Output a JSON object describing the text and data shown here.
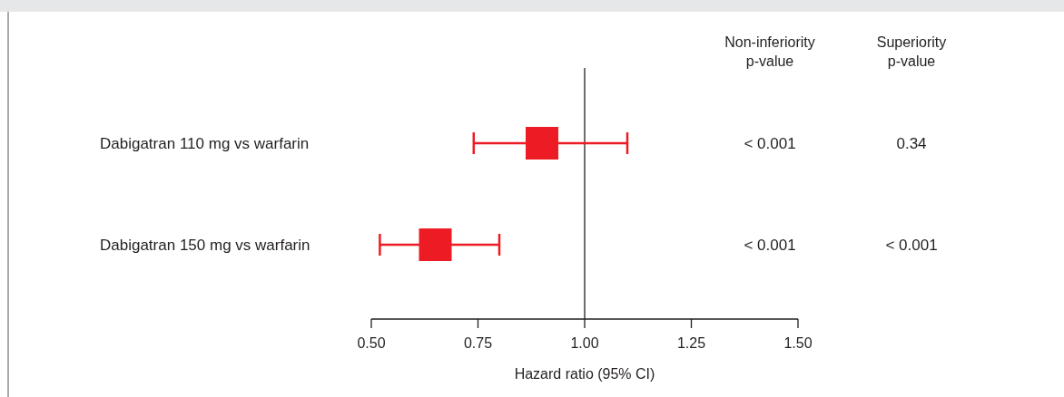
{
  "chart_data": {
    "type": "scatter",
    "orientation": "horizontal",
    "marker": "square",
    "xlabel": "Hazard ratio (95% CI)",
    "categories": [
      "Dabigatran 110 mg vs warfarin",
      "Dabigatran 150 mg vs warfarin"
    ],
    "values": [
      0.9,
      0.65
    ],
    "errors": [
      [
        0.74,
        1.1
      ],
      [
        0.52,
        0.8
      ]
    ],
    "color": "#ed1c24",
    "xlim": [
      0.5,
      1.5
    ],
    "xticks": [
      {
        "value": 0.5,
        "label": "0.50"
      },
      {
        "value": 0.75,
        "label": "0.75"
      },
      {
        "value": 1,
        "label": "1.00"
      },
      {
        "value": 1.25,
        "label": "1.25"
      },
      {
        "value": 1.5,
        "label": "1.50"
      }
    ],
    "ref_lines": [
      {
        "axis": "x",
        "value": 1,
        "color": "#231f20"
      }
    ],
    "annotations": [
      "Non-inferiority\np-value",
      "Superiority\np-value",
      "< 0.001",
      "0.34",
      "< 0.001",
      "< 0.001"
    ]
  }
}
